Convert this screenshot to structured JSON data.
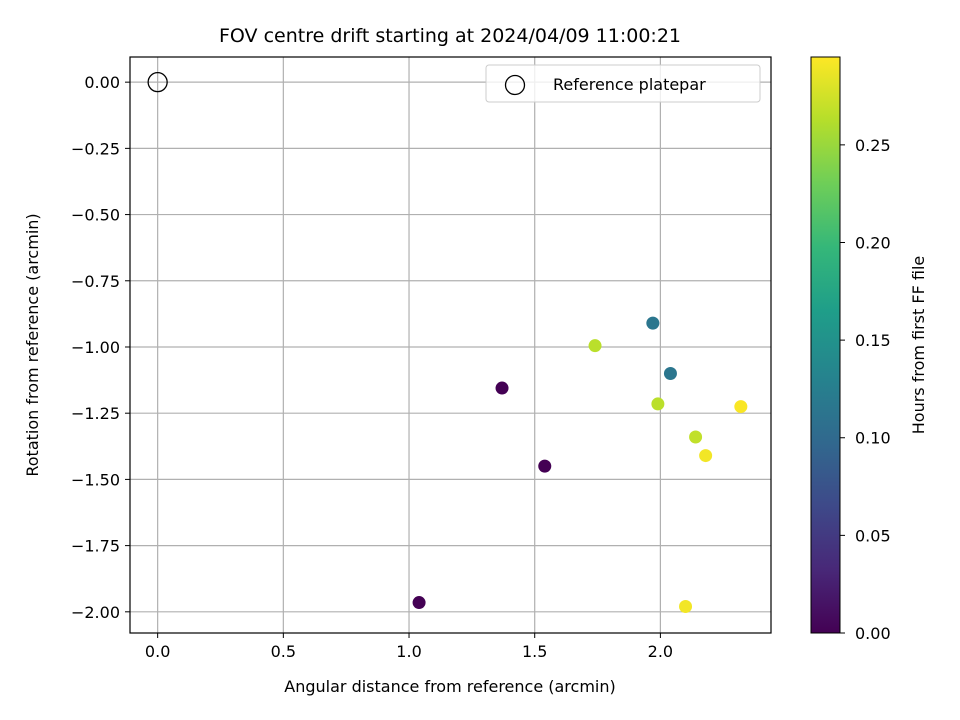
{
  "chart_data": {
    "type": "scatter",
    "title": "FOV centre drift starting at 2024/04/09 11:00:21",
    "xlabel": "Angular distance from reference (arcmin)",
    "ylabel": "Rotation from reference (arcmin)",
    "xlim": [
      -0.11,
      2.44
    ],
    "ylim": [
      -2.08,
      0.095
    ],
    "x_ticks": [
      0.0,
      0.5,
      1.0,
      1.5,
      2.0
    ],
    "x_tick_labels": [
      "0.0",
      "0.5",
      "1.0",
      "1.5",
      "2.0"
    ],
    "y_ticks": [
      0.0,
      -0.25,
      -0.5,
      -0.75,
      -1.0,
      -1.25,
      -1.5,
      -1.75,
      -2.0
    ],
    "y_tick_labels": [
      "0.00",
      "−0.25",
      "−0.50",
      "−0.75",
      "−1.00",
      "−1.25",
      "−1.50",
      "−1.75",
      "−2.00"
    ],
    "grid": true,
    "colormap": "viridis",
    "reference": {
      "x": 0.0,
      "y": 0.0,
      "legend_label": "Reference platepar"
    },
    "legend_position": "upper right",
    "points": [
      {
        "x": 1.04,
        "y": -1.965,
        "hours": 0.0
      },
      {
        "x": 1.37,
        "y": -1.155,
        "hours": 0.0
      },
      {
        "x": 1.54,
        "y": -1.45,
        "hours": 0.0
      },
      {
        "x": 1.97,
        "y": -0.91,
        "hours": 0.115
      },
      {
        "x": 2.04,
        "y": -1.1,
        "hours": 0.115
      },
      {
        "x": 1.74,
        "y": -0.995,
        "hours": 0.265
      },
      {
        "x": 1.99,
        "y": -1.215,
        "hours": 0.265
      },
      {
        "x": 2.14,
        "y": -1.34,
        "hours": 0.268
      },
      {
        "x": 2.1,
        "y": -1.98,
        "hours": 0.29
      },
      {
        "x": 2.18,
        "y": -1.41,
        "hours": 0.29
      },
      {
        "x": 2.32,
        "y": -1.225,
        "hours": 0.293
      }
    ],
    "colorbar": {
      "label": "Hours from first FF file",
      "range": [
        0.0,
        0.295
      ],
      "ticks": [
        0.0,
        0.05,
        0.1,
        0.15,
        0.2,
        0.25
      ],
      "tick_labels": [
        "0.00",
        "0.05",
        "0.10",
        "0.15",
        "0.20",
        "0.25"
      ]
    }
  }
}
